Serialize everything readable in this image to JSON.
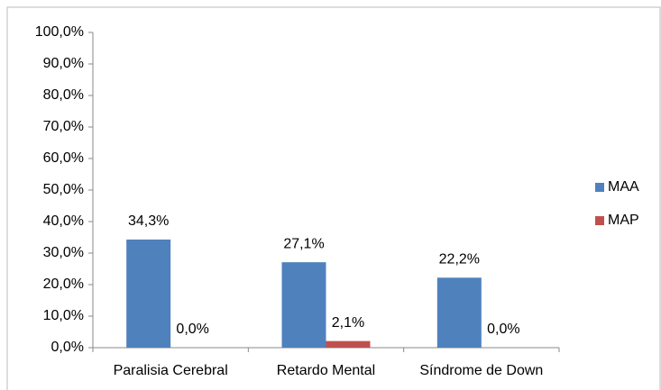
{
  "chart_data": {
    "type": "bar",
    "categories": [
      "Paralisia Cerebral",
      "Retardo Mental",
      "Síndrome de Down"
    ],
    "series": [
      {
        "name": "MAA",
        "color": "#4f81bd",
        "values": [
          34.3,
          27.1,
          22.2
        ],
        "value_labels": [
          "34,3%",
          "27,1%",
          "22,2%"
        ]
      },
      {
        "name": "MAP",
        "color": "#c0504d",
        "values": [
          0,
          2.1,
          0
        ],
        "value_labels": [
          "0,0%",
          "2,1%",
          "0,0%"
        ]
      }
    ],
    "ylim": [
      0,
      100
    ],
    "yticks": [
      {
        "value": 0,
        "label": "0,0%"
      },
      {
        "value": 10,
        "label": "10,0%"
      },
      {
        "value": 20,
        "label": "20,0%"
      },
      {
        "value": 30,
        "label": "30,0%"
      },
      {
        "value": 40,
        "label": "40,0%"
      },
      {
        "value": 50,
        "label": "50,0%"
      },
      {
        "value": 60,
        "label": "60,0%"
      },
      {
        "value": 70,
        "label": "70,0%"
      },
      {
        "value": 80,
        "label": "80,0%"
      },
      {
        "value": 90,
        "label": "90,0%"
      },
      {
        "value": 100,
        "label": "100,0%"
      }
    ],
    "grid": false,
    "legend": "right"
  }
}
